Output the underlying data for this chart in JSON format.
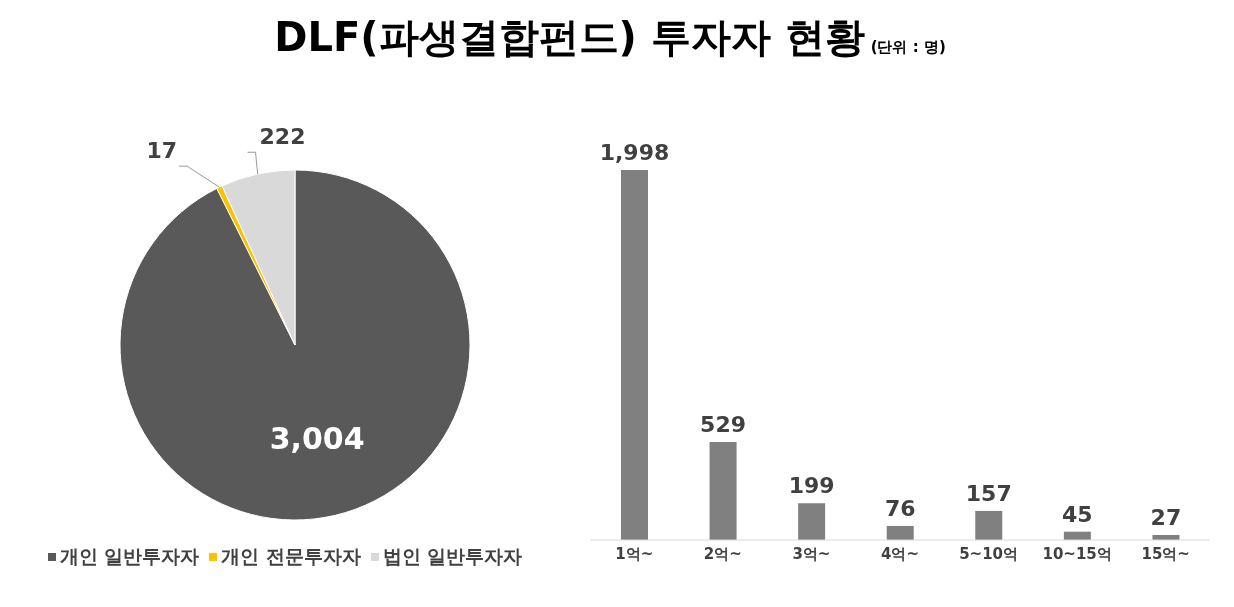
{
  "chart_data": [
    {
      "type": "pie",
      "title": "DLF(파생결합펀드) 투자자 현황",
      "categories": [
        "개인 일반투자자",
        "개인 전문투자자",
        "법인 일반투자자"
      ],
      "values": [
        3004,
        17,
        222
      ],
      "value_labels": [
        "3,004",
        "17",
        "222"
      ],
      "colors": [
        "#595959",
        "#ffc000",
        "#d9d9d9"
      ],
      "data_labels": true,
      "legend": "bottom"
    },
    {
      "type": "bar",
      "subtitle": "(단위 : 명)",
      "data_labels": true,
      "categories": [
        "1억~",
        "2억~",
        "3억~",
        "4억~",
        "5~10억",
        "10~15억",
        "15억~"
      ],
      "values": [
        1998,
        529,
        199,
        76,
        157,
        45,
        27
      ],
      "value_labels": [
        "1,998",
        "529",
        "199",
        "76",
        "157",
        "45",
        "27"
      ],
      "color": "#808080",
      "tick_labels": "x"
    }
  ]
}
